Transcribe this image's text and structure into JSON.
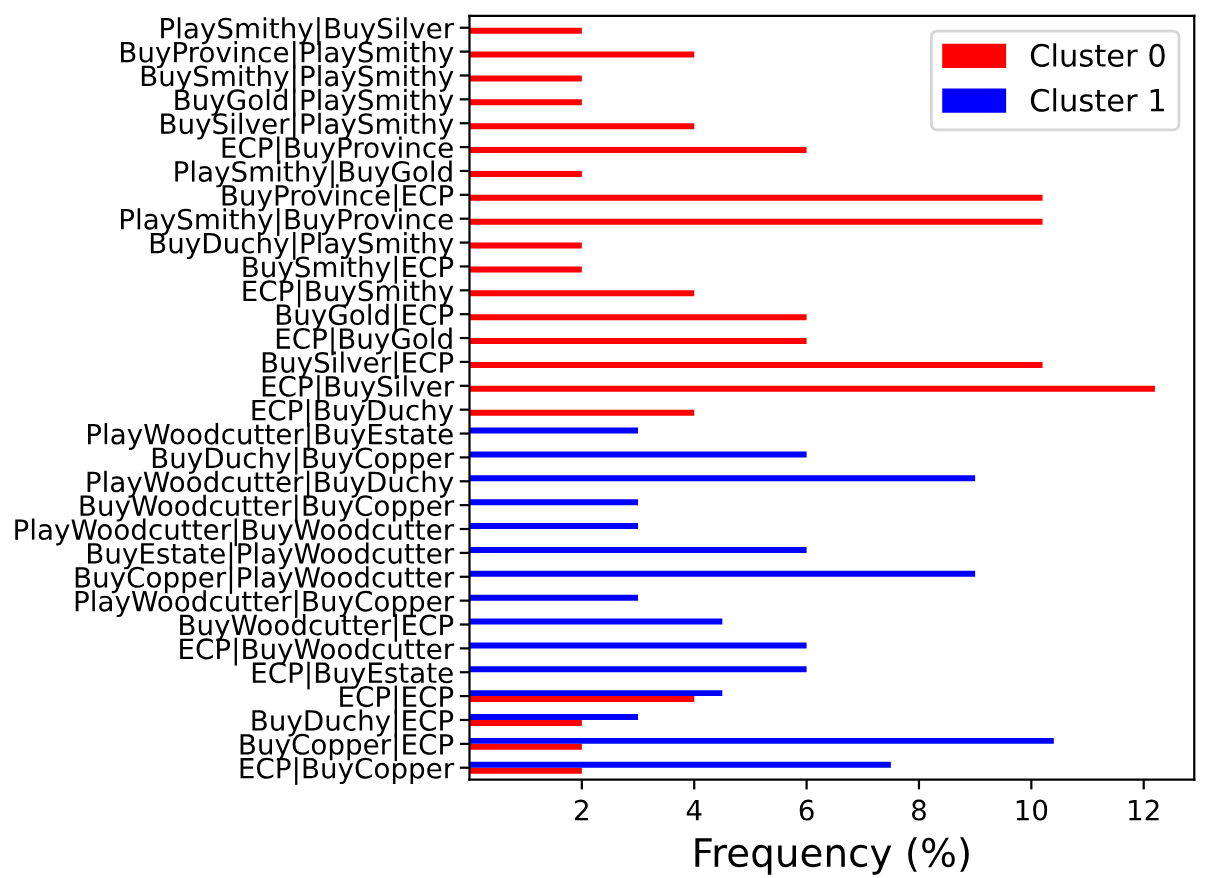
{
  "chart_data": {
    "type": "bar",
    "orientation": "horizontal",
    "xlabel": "Frequency (%)",
    "categories": [
      "PlaySmithy|BuySilver",
      "BuyProvince|PlaySmithy",
      "BuySmithy|PlaySmithy",
      "BuyGold|PlaySmithy",
      "BuySilver|PlaySmithy",
      "ECP|BuyProvince",
      "PlaySmithy|BuyGold",
      "BuyProvince|ECP",
      "PlaySmithy|BuyProvince",
      "BuyDuchy|PlaySmithy",
      "BuySmithy|ECP",
      "ECP|BuySmithy",
      "BuyGold|ECP",
      "ECP|BuyGold",
      "BuySilver|ECP",
      "ECP|BuySilver",
      "ECP|BuyDuchy",
      "PlayWoodcutter|BuyEstate",
      "BuyDuchy|BuyCopper",
      "PlayWoodcutter|BuyDuchy",
      "BuyWoodcutter|BuyCopper",
      "PlayWoodcutter|BuyWoodcutter",
      "BuyEstate|PlayWoodcutter",
      "BuyCopper|PlayWoodcutter",
      "PlayWoodcutter|BuyCopper",
      "BuyWoodcutter|ECP",
      "ECP|BuyWoodcutter",
      "ECP|BuyEstate",
      "ECP|ECP",
      "BuyDuchy|ECP",
      "BuyCopper|ECP",
      "ECP|BuyCopper"
    ],
    "series": [
      {
        "name": "Cluster 0",
        "color": "#ff0000",
        "values": [
          2,
          4,
          2,
          2,
          4,
          6,
          2,
          10.2,
          10.2,
          2,
          2,
          4,
          6,
          6,
          10.2,
          12.2,
          4,
          null,
          null,
          null,
          null,
          null,
          null,
          null,
          null,
          null,
          null,
          null,
          4,
          2,
          2,
          2
        ]
      },
      {
        "name": "Cluster 1",
        "color": "#0000ff",
        "values": [
          null,
          null,
          null,
          null,
          null,
          null,
          null,
          null,
          null,
          null,
          null,
          null,
          null,
          null,
          null,
          null,
          null,
          3,
          6,
          9,
          3,
          3,
          6,
          9,
          3,
          4.5,
          6,
          6,
          4.5,
          3,
          10.4,
          7.5
        ]
      }
    ],
    "xlim": [
      0,
      12.9
    ],
    "xticks": [
      2,
      4,
      6,
      8,
      10,
      12
    ],
    "legend": "top right",
    "grid": false
  }
}
